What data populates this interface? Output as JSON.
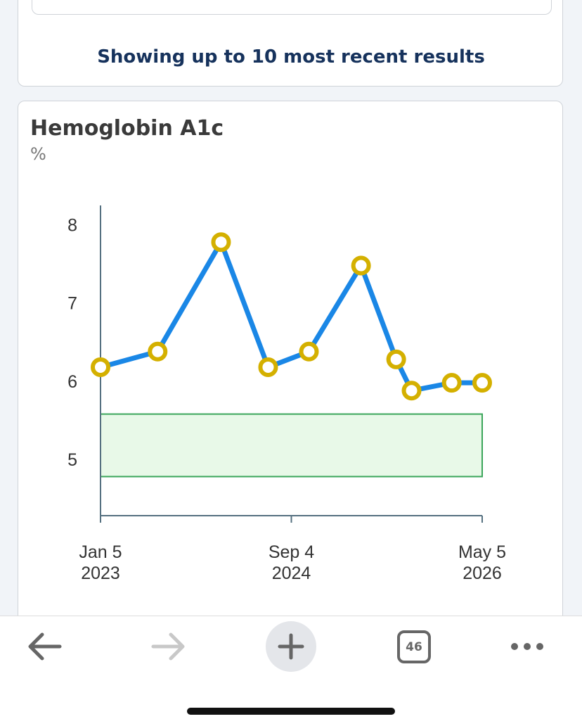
{
  "banner": {
    "text": "Showing up to 10 most recent results"
  },
  "chart_data": {
    "type": "line",
    "title": "Hemoglobin A1c",
    "unit": "%",
    "x": [
      "2023-01-05",
      "2023-07-06",
      "2024-01-24",
      "2024-06-22",
      "2024-10-30",
      "2025-04-14",
      "2025-08-04",
      "2025-09-22",
      "2026-01-28",
      "2026-05-05"
    ],
    "series": [
      {
        "color": "#1a87e6",
        "marker_color": "#d4b000",
        "values": [
          6.2,
          6.4,
          7.8,
          6.2,
          6.4,
          7.5,
          6.3,
          5.9,
          6.0,
          6.0
        ]
      }
    ],
    "reference_range": [
      4.8,
      5.6
    ],
    "reference_color": "#3aa55a",
    "xlim": [
      "2023-01-05",
      "2026-05-05"
    ],
    "xticks": [
      {
        "value": "2023-01-05",
        "label": [
          "Jan 5",
          "2023"
        ]
      },
      {
        "value": "2024-09-04",
        "label": [
          "Sep 4",
          "2024"
        ]
      },
      {
        "value": "2026-05-05",
        "label": [
          "May 5",
          "2026"
        ]
      }
    ],
    "ylim": [
      4.3,
      8.27
    ],
    "yticks": [
      5,
      6,
      7,
      8
    ],
    "grid": false
  },
  "toolbar": {
    "tab_count": "46"
  }
}
